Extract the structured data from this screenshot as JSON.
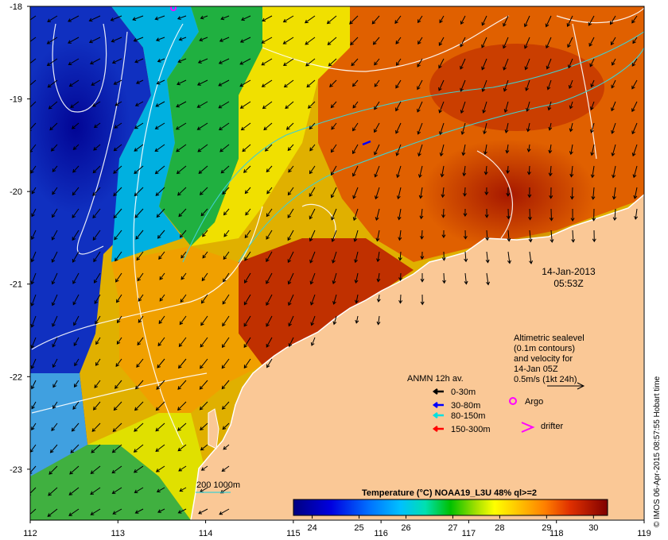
{
  "map": {
    "date": "14-Jan-2013",
    "time": "05:53Z",
    "colorbar_title": "Temperature (°C) NOAA19_L3U 48% ql>=2",
    "colorbar_ticks": [
      "24",
      "25",
      "26",
      "27",
      "28",
      "29",
      "30"
    ],
    "colorbar_range": [
      23.6,
      30.3
    ],
    "lon_ticks": [
      "112",
      "113",
      "114",
      "115",
      "116",
      "117",
      "118",
      "119"
    ],
    "lat_ticks": [
      "-18",
      "-19",
      "-20",
      "-21",
      "-22",
      "-23"
    ],
    "lon_range": [
      112,
      119
    ],
    "lat_range": [
      -23.55,
      -18
    ],
    "credit": "© IMOS 06-Apr-2015 08:57:55 Hobart time",
    "altimetry_note": [
      "Altimetric sealevel",
      "(0.1m contours)",
      "and velocity for",
      "14-Jan 05Z",
      "0.5m/s (1kt 24h)"
    ],
    "bathymetry_note": "200  1000m",
    "anmn": {
      "title": "ANMN 12h av.",
      "items": [
        {
          "label": "0-30m",
          "color": "#000000"
        },
        {
          "label": "30-80m",
          "color": "#0000ff"
        },
        {
          "label": "80-150m",
          "color": "#00e0e0"
        },
        {
          "label": "150-300m",
          "color": "#ff0000"
        }
      ]
    },
    "argo_label": "Argo",
    "drifter_label": "drifter",
    "land_color": "#fac896",
    "marker_color": "#ff00ff"
  }
}
